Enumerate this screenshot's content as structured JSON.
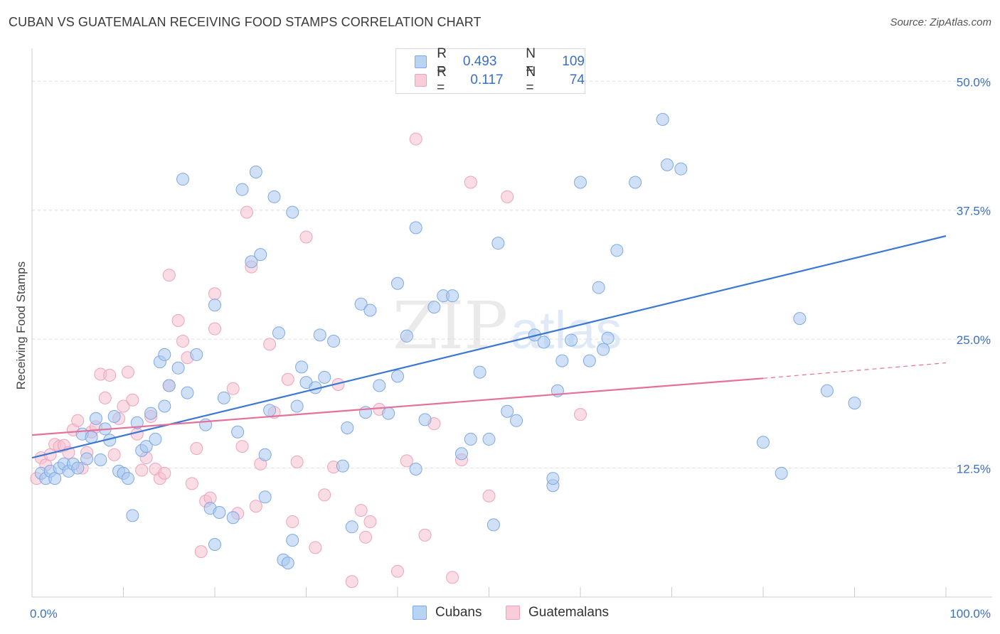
{
  "title": "CUBAN VS GUATEMALAN RECEIVING FOOD STAMPS CORRELATION CHART",
  "source": "Source: ZipAtlas.com",
  "legend": {
    "rows": [
      {
        "r_label": "R =",
        "r_value": "0.493",
        "n_label": "N =",
        "n_value": "109",
        "color": "#7aaae8",
        "fill": "#b9d3f3"
      },
      {
        "r_label": "R =",
        "r_value": "0.117",
        "n_label": "N =",
        "n_value": "74",
        "color": "#f0a0b8",
        "fill": "#f9ccd9"
      }
    ]
  },
  "bottom_legend": {
    "items": [
      {
        "label": "Cubans",
        "color": "#7aaae8",
        "fill": "#b9d3f3"
      },
      {
        "label": "Guatemalans",
        "color": "#f0a0b8",
        "fill": "#f9ccd9"
      }
    ]
  },
  "watermark": {
    "zip": "ZIP",
    "atlas": "atlas"
  },
  "chart_data": {
    "type": "scatter",
    "title": "CUBAN VS GUATEMALAN RECEIVING FOOD STAMPS CORRELATION CHART",
    "xlabel": "",
    "ylabel": "Receiving Food Stamps",
    "xlim": [
      0,
      100
    ],
    "ylim": [
      0,
      52.5
    ],
    "x_tick_labels": [
      "0.0%",
      "100.0%"
    ],
    "y_ticks": [
      12.5,
      25.0,
      37.5,
      50.0
    ],
    "y_tick_labels": [
      "12.5%",
      "25.0%",
      "37.5%",
      "50.0%"
    ],
    "colors": {
      "cubans": "#3a78d4",
      "guatemalans": "#e5709a",
      "cubans_fill": "#a9c8f0",
      "guatemalans_fill": "#f6bfd0",
      "axis_text": "#3b6fc4"
    },
    "series": [
      {
        "name": "Cubans",
        "trend": {
          "x0": 0,
          "y0": 13.5,
          "x1": 100,
          "y1": 35.0
        },
        "points": [
          [
            1,
            12
          ],
          [
            1.5,
            11.5
          ],
          [
            2,
            12.2
          ],
          [
            2.5,
            11.5
          ],
          [
            3,
            12.5
          ],
          [
            3.5,
            12.9
          ],
          [
            4,
            12.2
          ],
          [
            4.5,
            12.9
          ],
          [
            5,
            12.5
          ],
          [
            5.5,
            15.8
          ],
          [
            6,
            13.4
          ],
          [
            6.5,
            15.5
          ],
          [
            7,
            17.3
          ],
          [
            7.5,
            13.3
          ],
          [
            8,
            16.3
          ],
          [
            8.5,
            15.2
          ],
          [
            9,
            17.5
          ],
          [
            9.5,
            12.2
          ],
          [
            10,
            12.0
          ],
          [
            10.5,
            11.5
          ],
          [
            11,
            7.9
          ],
          [
            11.5,
            16.9
          ],
          [
            12,
            14.2
          ],
          [
            12.5,
            14.6
          ],
          [
            13,
            17.8
          ],
          [
            13.5,
            15.3
          ],
          [
            14,
            22.8
          ],
          [
            14.5,
            23.5
          ],
          [
            15,
            20.5
          ],
          [
            16,
            22.2
          ],
          [
            16.5,
            40.5
          ],
          [
            17,
            19.8
          ],
          [
            18,
            23.5
          ],
          [
            19,
            16.7
          ],
          [
            19.5,
            8.6
          ],
          [
            20,
            28.3
          ],
          [
            20,
            5.1
          ],
          [
            20.5,
            8.2
          ],
          [
            21,
            19.3
          ],
          [
            22,
            7.7
          ],
          [
            22.5,
            16.0
          ],
          [
            23,
            39.5
          ],
          [
            24,
            32.5
          ],
          [
            24.5,
            41.2
          ],
          [
            25,
            33.2
          ],
          [
            25.5,
            9.7
          ],
          [
            25.5,
            13.8
          ],
          [
            26,
            18.1
          ],
          [
            26.5,
            38.8
          ],
          [
            27,
            25.6
          ],
          [
            27.5,
            3.6
          ],
          [
            28,
            3.3
          ],
          [
            28.5,
            37.3
          ],
          [
            28.5,
            5.5
          ],
          [
            29,
            18.5
          ],
          [
            29.5,
            22.3
          ],
          [
            30,
            20.8
          ],
          [
            31,
            20.3
          ],
          [
            31.5,
            25.4
          ],
          [
            32,
            21.3
          ],
          [
            33,
            24.8
          ],
          [
            34,
            12.7
          ],
          [
            34.5,
            16.4
          ],
          [
            35,
            6.8
          ],
          [
            36,
            28.4
          ],
          [
            36.5,
            17.9
          ],
          [
            37,
            27.8
          ],
          [
            38,
            20.5
          ],
          [
            39,
            17.8
          ],
          [
            40,
            21.4
          ],
          [
            40,
            30.4
          ],
          [
            41,
            25.3
          ],
          [
            42,
            12.4
          ],
          [
            42,
            35.8
          ],
          [
            43,
            17.2
          ],
          [
            44,
            28.1
          ],
          [
            45,
            29.2
          ],
          [
            46,
            29.2
          ],
          [
            47,
            13.9
          ],
          [
            48,
            15.3
          ],
          [
            49,
            21.8
          ],
          [
            50,
            15.3
          ],
          [
            51,
            34.3
          ],
          [
            52,
            18.0
          ],
          [
            53,
            17.1
          ],
          [
            55,
            25.4
          ],
          [
            56,
            24.7
          ],
          [
            57,
            10.8
          ],
          [
            57,
            11.5
          ],
          [
            57.5,
            20.0
          ],
          [
            58,
            22.9
          ],
          [
            59,
            24.9
          ],
          [
            60,
            40.2
          ],
          [
            61,
            22.9
          ],
          [
            62,
            30.0
          ],
          [
            62.5,
            24.0
          ],
          [
            63,
            25.1
          ],
          [
            64,
            33.6
          ],
          [
            66,
            40.2
          ],
          [
            69,
            46.3
          ],
          [
            69.5,
            41.9
          ],
          [
            71,
            41.5
          ],
          [
            80,
            15.0
          ],
          [
            82,
            12.0
          ],
          [
            84,
            27.0
          ],
          [
            87,
            20.0
          ],
          [
            90,
            18.8
          ],
          [
            50.5,
            7.0
          ],
          [
            14.5,
            18.5
          ]
        ]
      },
      {
        "name": "Guatemalans",
        "trend": {
          "x0": 0,
          "y0": 15.7,
          "x1": 80,
          "y1": 21.2,
          "dash_to_x": 100,
          "dash_to_y": 22.7
        },
        "points": [
          [
            0.5,
            11.5
          ],
          [
            1,
            13.5
          ],
          [
            1.5,
            12.8
          ],
          [
            2,
            13.8
          ],
          [
            2.5,
            14.8
          ],
          [
            3,
            14.6
          ],
          [
            3.5,
            14.7
          ],
          [
            4,
            14.0
          ],
          [
            4.5,
            16.2
          ],
          [
            5,
            17.1
          ],
          [
            5.5,
            12.5
          ],
          [
            6,
            14.0
          ],
          [
            6.5,
            16.0
          ],
          [
            7,
            16.5
          ],
          [
            7.5,
            21.6
          ],
          [
            8,
            19.3
          ],
          [
            8.5,
            21.5
          ],
          [
            9,
            13.8
          ],
          [
            9.5,
            17.3
          ],
          [
            10,
            18.5
          ],
          [
            10.5,
            21.8
          ],
          [
            11,
            19.1
          ],
          [
            11.5,
            15.8
          ],
          [
            12,
            12.3
          ],
          [
            12.5,
            13.5
          ],
          [
            13,
            17.5
          ],
          [
            13.5,
            12.4
          ],
          [
            14,
            11.5
          ],
          [
            14.5,
            12.0
          ],
          [
            15,
            20.5
          ],
          [
            15,
            31.2
          ],
          [
            16,
            26.8
          ],
          [
            16.5,
            24.8
          ],
          [
            17,
            23.2
          ],
          [
            17.5,
            11.0
          ],
          [
            18,
            14.4
          ],
          [
            18.5,
            4.4
          ],
          [
            19,
            9.3
          ],
          [
            19.5,
            9.6
          ],
          [
            20,
            26.0
          ],
          [
            20,
            29.4
          ],
          [
            22,
            20.2
          ],
          [
            22.5,
            8.1
          ],
          [
            23,
            14.6
          ],
          [
            23.5,
            37.3
          ],
          [
            24,
            32.0
          ],
          [
            24.5,
            8.8
          ],
          [
            25,
            12.9
          ],
          [
            26,
            24.5
          ],
          [
            26.5,
            17.9
          ],
          [
            28,
            21.1
          ],
          [
            28.5,
            7.3
          ],
          [
            29,
            13.1
          ],
          [
            30,
            34.9
          ],
          [
            31,
            4.8
          ],
          [
            32,
            9.9
          ],
          [
            33,
            12.6
          ],
          [
            33.5,
            20.6
          ],
          [
            35,
            1.5
          ],
          [
            36,
            8.4
          ],
          [
            36.5,
            5.8
          ],
          [
            37,
            7.3
          ],
          [
            38,
            18.2
          ],
          [
            40,
            2.5
          ],
          [
            41,
            13.2
          ],
          [
            42,
            44.4
          ],
          [
            43,
            6.0
          ],
          [
            44,
            16.8
          ],
          [
            46,
            1.9
          ],
          [
            47,
            13.3
          ],
          [
            48,
            40.2
          ],
          [
            50,
            9.8
          ],
          [
            52,
            38.8
          ],
          [
            60,
            17.7
          ]
        ]
      }
    ]
  }
}
